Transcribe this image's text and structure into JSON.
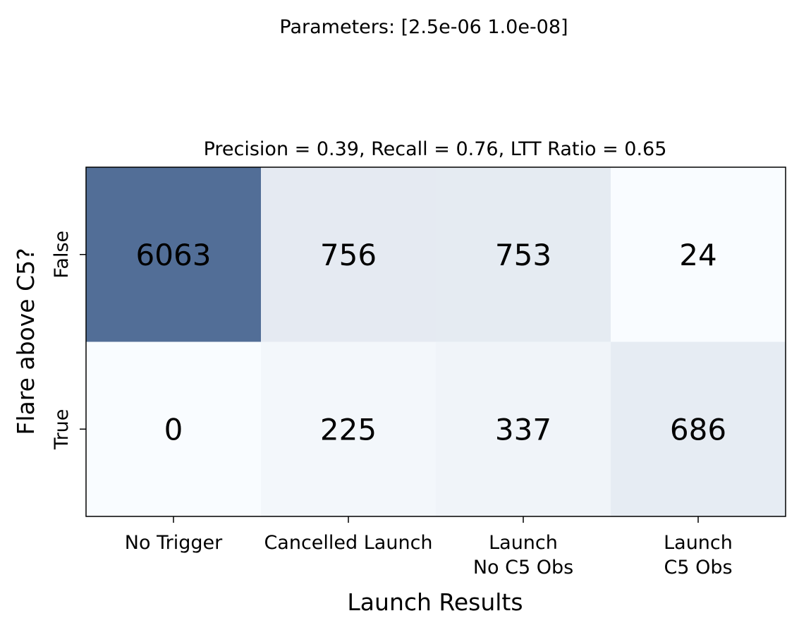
{
  "suptitle": "Parameters: [2.5e-06 1.0e-08]",
  "chart_data": {
    "type": "heatmap",
    "title": "Precision = 0.39, Recall = 0.76, LTT Ratio = 0.65",
    "xlabel": "Launch Results",
    "ylabel": "Flare above C5?",
    "x_categories": [
      [
        "No Trigger"
      ],
      [
        "Cancelled Launch"
      ],
      [
        "Launch",
        "No C5 Obs"
      ],
      [
        "Launch",
        "C5 Obs"
      ]
    ],
    "y_categories": [
      "False",
      "True"
    ],
    "values": [
      [
        6063,
        756,
        753,
        24
      ],
      [
        0,
        225,
        337,
        686
      ]
    ],
    "colormap": "Blues",
    "colors": {
      "low": "#f7fbff",
      "high": "#08306b"
    },
    "cell_alpha": 0.7,
    "grid": false
  }
}
